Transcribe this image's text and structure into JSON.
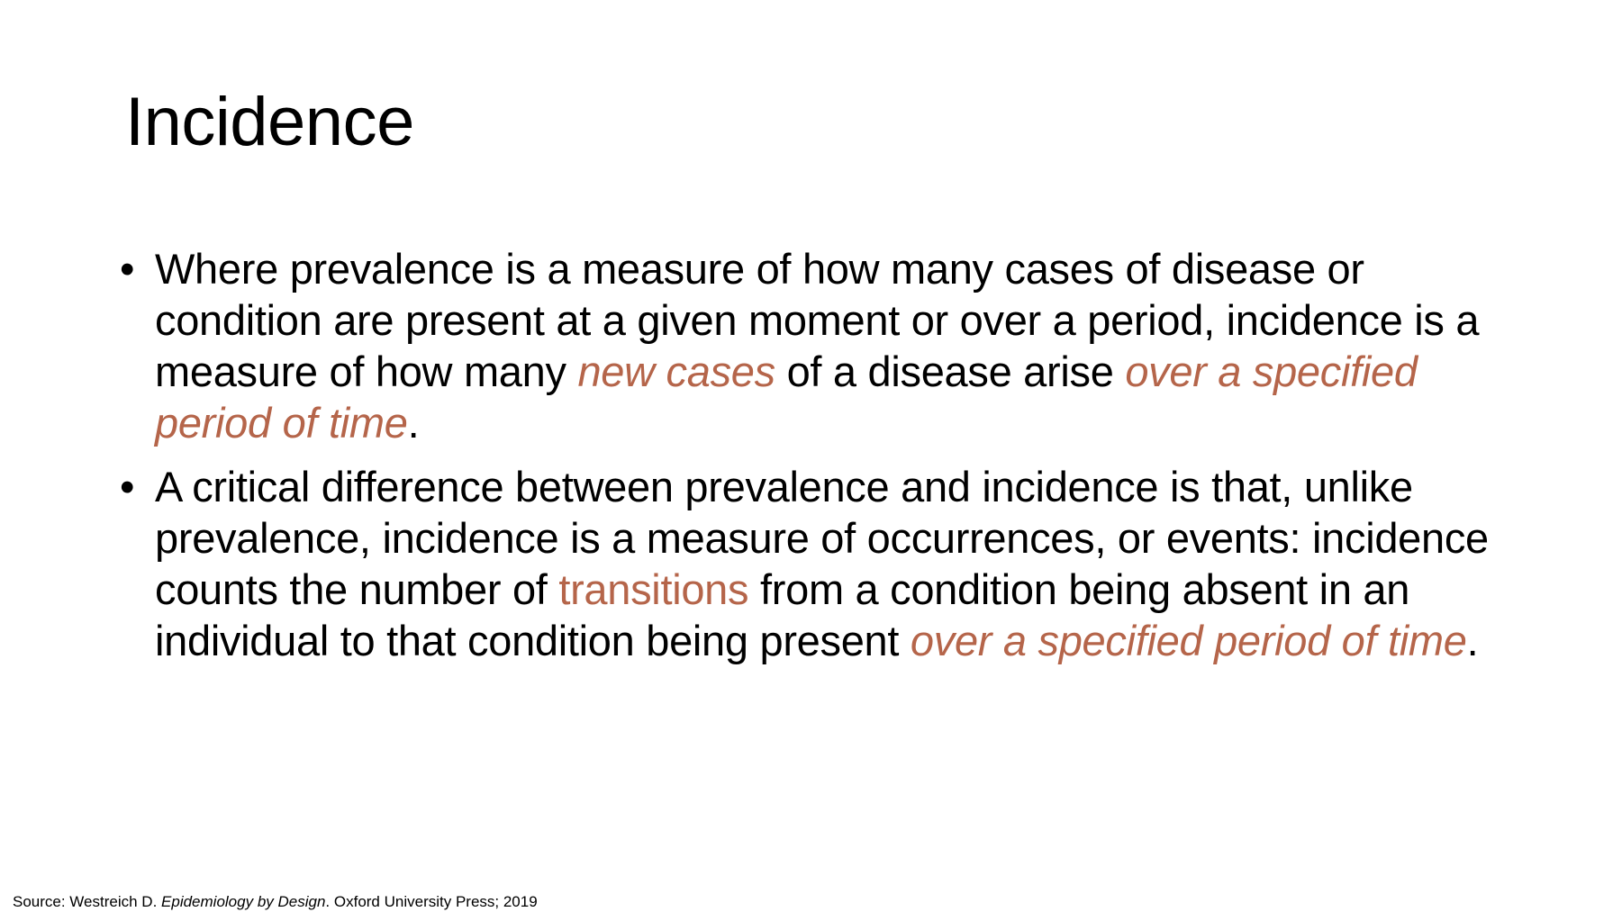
{
  "slide": {
    "title": "Incidence",
    "accent_color": "#b5654a",
    "bullet_glyph": "•",
    "bullets": [
      {
        "parts": [
          "Where prevalence is a measure of how many cases of disease or condition are present at a given moment or over a period, incidence is a measure of how many ",
          "new cases",
          " of a disease arise ",
          "over a specified period of time",
          "."
        ]
      },
      {
        "parts": [
          "A critical difference between prevalence and incidence is that, unlike prevalence, incidence is a measure of occurrences, or events: incidence counts the number of ",
          "transitions",
          " from a condition being absent in an individual to that condition being present ",
          "over a specified period of time",
          "."
        ]
      }
    ]
  },
  "source": {
    "prefix": "Source: Westreich D. ",
    "book_title": "Epidemiology by Design",
    "suffix": ". Oxford University Press; 2019"
  }
}
